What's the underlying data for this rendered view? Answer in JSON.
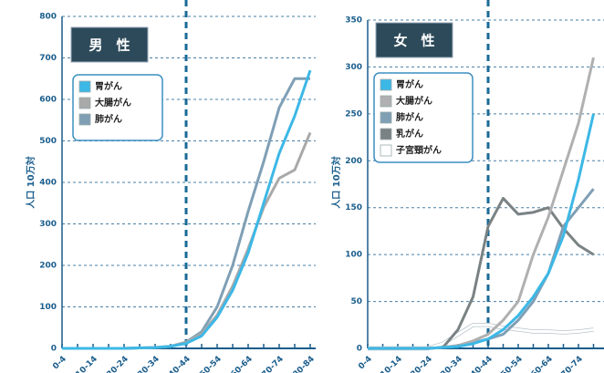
{
  "chart_data": [
    {
      "type": "line",
      "title": "男　性",
      "ylabel": "人口 10万対",
      "categories": [
        "0-4",
        null,
        "10-14",
        null,
        "20-24",
        null,
        "30-34",
        null,
        "40-44",
        null,
        "50-54",
        null,
        "60-64",
        null,
        "70-74",
        null,
        "80-84"
      ],
      "vline_at": "40-44",
      "ylim": [
        0,
        800
      ],
      "yticks": [
        0,
        100,
        200,
        300,
        400,
        500,
        600,
        700,
        800
      ],
      "grid": true,
      "series": [
        {
          "name": "胃がん",
          "color": "#3cb8e6",
          "values": [
            0,
            0,
            0,
            0,
            0,
            1,
            2,
            5,
            12,
            30,
            75,
            140,
            230,
            350,
            470,
            560,
            670
          ]
        },
        {
          "name": "大腸がん",
          "color": "#a9a9a9",
          "values": [
            0,
            0,
            0,
            0,
            0,
            1,
            2,
            5,
            15,
            35,
            80,
            150,
            240,
            340,
            410,
            430,
            520
          ]
        },
        {
          "name": "肺がん",
          "color": "#7f9fb5",
          "values": [
            0,
            0,
            0,
            0,
            0,
            1,
            2,
            5,
            15,
            40,
            100,
            200,
            330,
            450,
            580,
            650,
            650
          ]
        }
      ]
    },
    {
      "type": "line",
      "title": "女　性",
      "ylabel": "人口 10万対",
      "categories": [
        "0-4",
        null,
        "10-14",
        null,
        "20-24",
        null,
        "30-34",
        null,
        "40-44",
        null,
        "50-54",
        null,
        "60-64",
        null,
        "70-74",
        null
      ],
      "vline_at": "40-44",
      "ylim": [
        0,
        350
      ],
      "yticks": [
        0,
        50,
        100,
        150,
        200,
        250,
        300,
        350
      ],
      "grid": true,
      "series": [
        {
          "name": "胃がん",
          "color": "#3cb8e6",
          "values": [
            0,
            0,
            0,
            0,
            0,
            1,
            2,
            5,
            10,
            20,
            35,
            55,
            80,
            120,
            180,
            250
          ]
        },
        {
          "name": "大腸がん",
          "color": "#b0b0b0",
          "values": [
            0,
            0,
            0,
            0,
            0,
            1,
            3,
            8,
            15,
            30,
            50,
            100,
            140,
            190,
            240,
            310
          ]
        },
        {
          "name": "肺がん",
          "color": "#7f9fb5",
          "values": [
            0,
            0,
            0,
            0,
            0,
            1,
            3,
            6,
            10,
            15,
            30,
            50,
            80,
            130,
            150,
            170
          ]
        },
        {
          "name": "乳がん",
          "color": "#7a8284",
          "values": [
            0,
            0,
            0,
            0,
            0,
            1,
            20,
            55,
            130,
            160,
            143,
            145,
            150,
            128,
            110,
            100
          ]
        },
        {
          "name": "子宮頸がん",
          "color": "#ffffff",
          "values": [
            0,
            0,
            0,
            0,
            0,
            5,
            15,
            25,
            25,
            22,
            20,
            18,
            18,
            17,
            18,
            20
          ]
        }
      ]
    }
  ]
}
